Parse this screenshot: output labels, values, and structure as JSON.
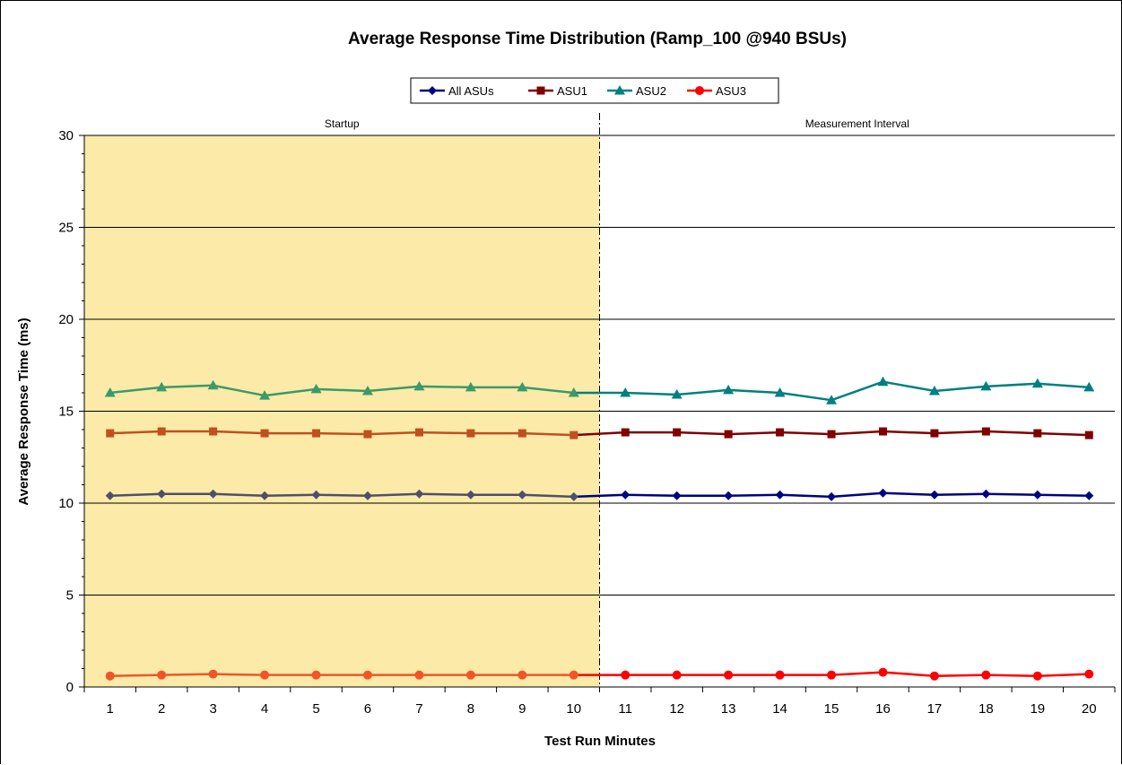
{
  "chart_data": {
    "type": "line",
    "title": "Average Response Time Distribution (Ramp_100 @940 BSUs)",
    "xlabel": "Test Run Minutes",
    "ylabel": "Average Response  Time (ms)",
    "x": [
      1,
      2,
      3,
      4,
      5,
      6,
      7,
      8,
      9,
      10,
      11,
      12,
      13,
      14,
      15,
      16,
      17,
      18,
      19,
      20
    ],
    "ylim": [
      0,
      30
    ],
    "yticks": [
      0,
      5,
      10,
      15,
      20,
      25,
      30
    ],
    "grid": true,
    "legend_position": "top",
    "regions": [
      {
        "label": "Startup",
        "from": 1,
        "to": 10,
        "color": "#fceaa8"
      },
      {
        "label": "Measurement Interval",
        "from": 11,
        "to": 20,
        "color": "#ffffff"
      }
    ],
    "startup_colors": [
      "#4f4f6b",
      "#c0501f",
      "#3a9a6a",
      "#f0552a"
    ],
    "series": [
      {
        "name": "All ASUs",
        "color": "#000080",
        "marker": "diamond",
        "values": [
          10.4,
          10.5,
          10.5,
          10.4,
          10.45,
          10.4,
          10.5,
          10.45,
          10.45,
          10.35,
          10.45,
          10.4,
          10.4,
          10.45,
          10.35,
          10.55,
          10.45,
          10.5,
          10.45,
          10.4
        ]
      },
      {
        "name": "ASU1",
        "color": "#800000",
        "marker": "square",
        "values": [
          13.8,
          13.9,
          13.9,
          13.8,
          13.8,
          13.75,
          13.85,
          13.8,
          13.8,
          13.7,
          13.85,
          13.85,
          13.75,
          13.85,
          13.75,
          13.9,
          13.8,
          13.9,
          13.8,
          13.7
        ]
      },
      {
        "name": "ASU2",
        "color": "#008080",
        "marker": "triangle",
        "values": [
          16.0,
          16.3,
          16.4,
          15.85,
          16.2,
          16.1,
          16.35,
          16.3,
          16.3,
          16.0,
          16.0,
          15.9,
          16.15,
          16.0,
          15.6,
          16.6,
          16.1,
          16.35,
          16.5,
          16.3
        ]
      },
      {
        "name": "ASU3",
        "color": "#ff0000",
        "marker": "circle",
        "values": [
          0.6,
          0.65,
          0.7,
          0.65,
          0.65,
          0.65,
          0.65,
          0.65,
          0.65,
          0.65,
          0.65,
          0.65,
          0.65,
          0.65,
          0.65,
          0.8,
          0.6,
          0.65,
          0.6,
          0.7
        ]
      }
    ]
  }
}
